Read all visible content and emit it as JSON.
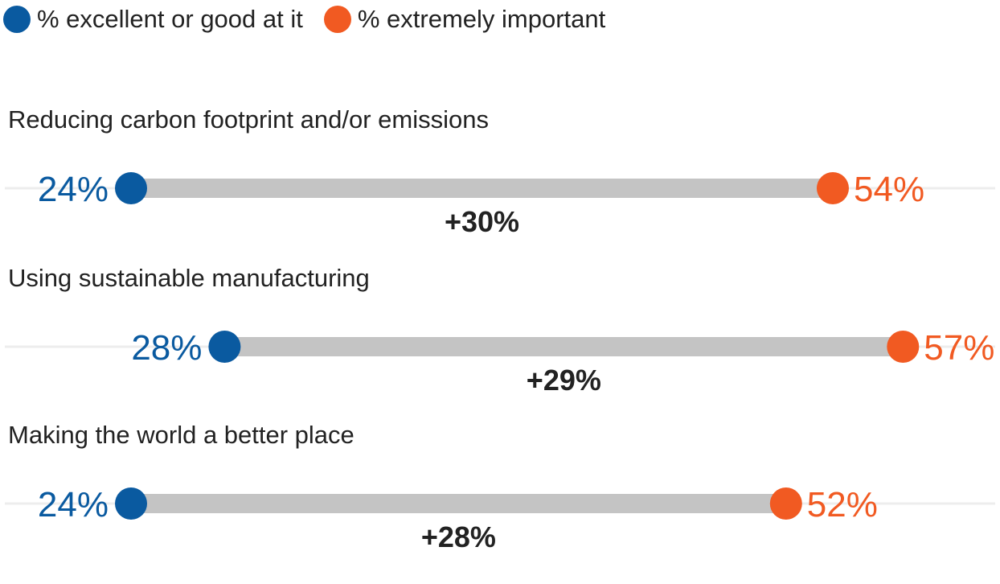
{
  "colors": {
    "series_a": "#0a5aa0",
    "series_b": "#f15a22",
    "bar": "#c4c4c4",
    "baseline": "#ededed"
  },
  "legend": {
    "series_a_label": "% excellent or good at it",
    "series_b_label": "% extremely important"
  },
  "chart_data": {
    "type": "dumbbell",
    "series": [
      {
        "name": "% excellent or good at it",
        "values": [
          24,
          28,
          24
        ]
      },
      {
        "name": "% extremely important",
        "values": [
          54,
          57,
          52
        ]
      }
    ],
    "categories": [
      "Reducing carbon footprint and/or emissions",
      "Using sustainable manufacturing",
      "Making the world a better place"
    ],
    "value_labels_a": [
      "24%",
      "28%",
      "24%"
    ],
    "value_labels_b": [
      "54%",
      "57%",
      "52%"
    ],
    "differences": [
      "+30%",
      "+29%",
      "+28%"
    ],
    "value_suffix": "%"
  }
}
